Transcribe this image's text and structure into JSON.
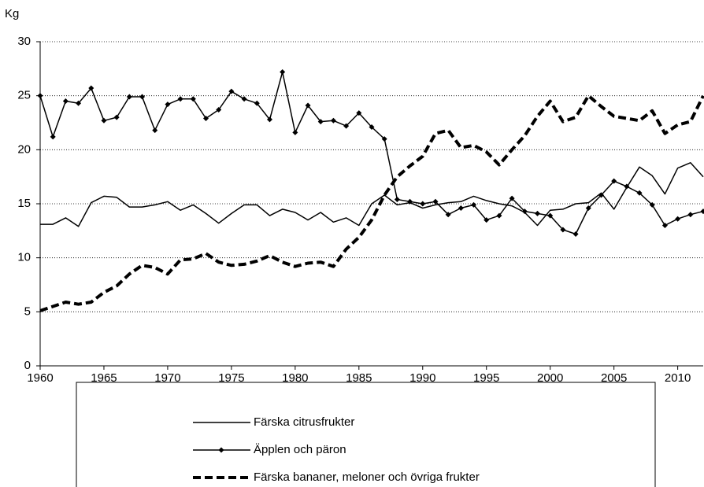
{
  "chart_data": {
    "type": "line",
    "y_label": "Kg",
    "x": [
      1960,
      1961,
      1962,
      1963,
      1964,
      1965,
      1966,
      1967,
      1968,
      1969,
      1970,
      1971,
      1972,
      1973,
      1974,
      1975,
      1976,
      1977,
      1978,
      1979,
      1980,
      1981,
      1982,
      1983,
      1984,
      1985,
      1986,
      1987,
      1988,
      1989,
      1990,
      1991,
      1992,
      1993,
      1994,
      1995,
      1996,
      1997,
      1998,
      1999,
      2000,
      2001,
      2002,
      2003,
      2004,
      2005,
      2006,
      2007,
      2008,
      2009,
      2010,
      2011,
      2012
    ],
    "xlim": [
      1960,
      2012
    ],
    "xticks": [
      1960,
      1965,
      1970,
      1975,
      1980,
      1985,
      1990,
      1995,
      2000,
      2005,
      2010
    ],
    "ylim": [
      0,
      30
    ],
    "yticks": [
      0,
      5,
      10,
      15,
      20,
      25,
      30
    ],
    "grid": true,
    "series": [
      {
        "name": "Färska citrusfrukter",
        "color": "#000000",
        "style": "solid",
        "values": [
          13.1,
          13.1,
          13.7,
          12.9,
          15.1,
          15.7,
          15.6,
          14.7,
          14.7,
          14.9,
          15.2,
          14.4,
          14.9,
          14.1,
          13.2,
          14.1,
          14.9,
          14.9,
          13.9,
          14.5,
          14.2,
          13.5,
          14.2,
          13.3,
          13.7,
          13.0,
          15.0,
          15.8,
          14.9,
          15.1,
          14.6,
          14.9,
          15.1,
          15.2,
          15.7,
          15.3,
          15.0,
          14.8,
          14.2,
          13.0,
          14.4,
          14.5,
          15.0,
          15.1,
          16.0,
          14.5,
          16.5,
          18.4,
          17.6,
          15.9,
          18.3,
          18.8,
          17.5
        ]
      },
      {
        "name": "Äpplen och päron",
        "color": "#000000",
        "style": "diamond",
        "values": [
          25.0,
          21.2,
          24.5,
          24.3,
          25.7,
          22.7,
          23.0,
          24.9,
          24.9,
          21.8,
          24.2,
          24.7,
          24.7,
          22.9,
          23.7,
          25.4,
          24.7,
          24.3,
          22.8,
          27.2,
          21.6,
          24.1,
          22.6,
          22.7,
          22.2,
          23.4,
          22.1,
          21.0,
          15.4,
          15.2,
          15.0,
          15.2,
          14.0,
          14.6,
          14.9,
          13.5,
          13.9,
          15.5,
          14.3,
          14.1,
          13.9,
          12.6,
          12.2,
          14.6,
          15.8,
          17.1,
          16.6,
          16.0,
          14.9,
          13.0,
          13.6,
          14.0,
          14.3
        ]
      },
      {
        "name": "Färska bananer, meloner och övriga frukter",
        "color": "#000000",
        "style": "dashed",
        "values": [
          5.1,
          5.5,
          5.9,
          5.7,
          5.9,
          6.8,
          7.4,
          8.5,
          9.3,
          9.1,
          8.5,
          9.8,
          9.9,
          10.4,
          9.6,
          9.3,
          9.4,
          9.7,
          10.2,
          9.6,
          9.2,
          9.5,
          9.6,
          9.2,
          10.8,
          11.9,
          13.5,
          15.8,
          17.5,
          18.5,
          19.4,
          21.5,
          21.8,
          20.2,
          20.4,
          19.8,
          18.6,
          20.0,
          21.3,
          23.1,
          24.5,
          22.6,
          23.0,
          25.0,
          24.0,
          23.1,
          22.9,
          22.7,
          23.6,
          21.5,
          22.3,
          22.6,
          25.0
        ]
      }
    ]
  }
}
